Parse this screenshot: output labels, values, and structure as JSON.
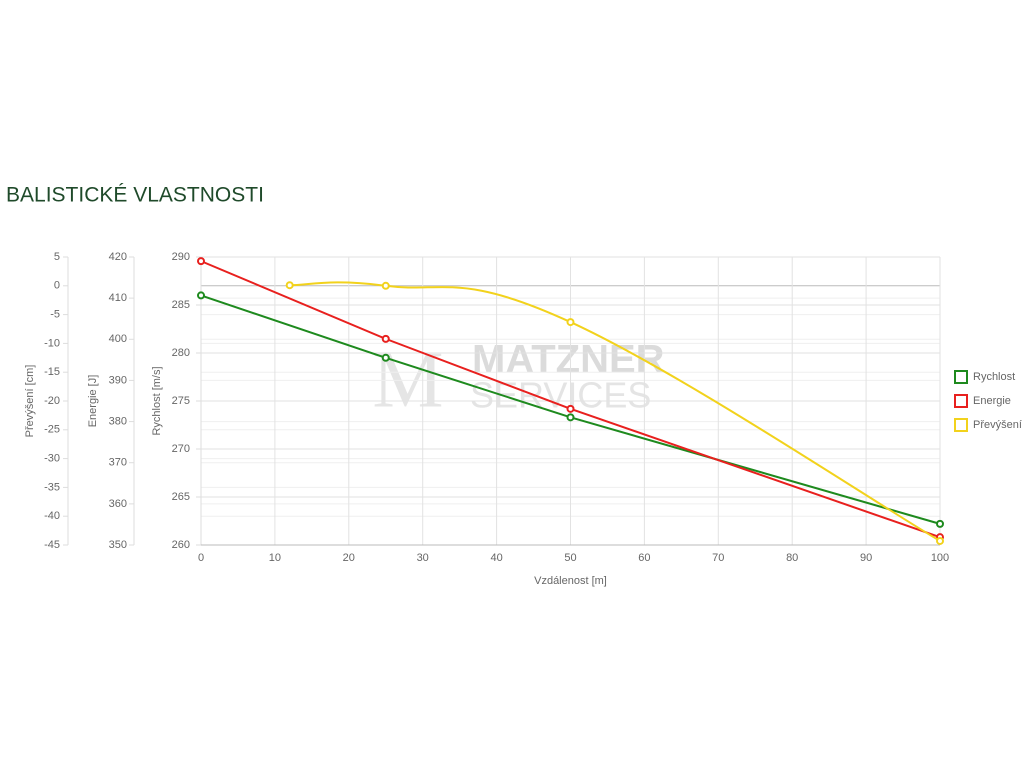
{
  "chart_data": {
    "type": "line",
    "title": "BALISTICKÉ VLASTNOSTI",
    "watermark": [
      "MATZNER",
      "SERVICES"
    ],
    "x_label": "Vzdálenost [m]",
    "xlim": [
      0,
      100
    ],
    "xticks": [
      0,
      10,
      20,
      30,
      40,
      50,
      60,
      70,
      80,
      90,
      100
    ],
    "y_label": "Rychlost [m/s]",
    "ylim": [
      260,
      290
    ],
    "yticks": [
      260,
      265,
      270,
      275,
      280,
      285,
      290
    ],
    "y2_label": "Energie [J]",
    "y2lim": [
      350,
      420
    ],
    "y2ticks": [
      350,
      360,
      370,
      380,
      390,
      400,
      410,
      420
    ],
    "y3_label": "Převýšení [cm]",
    "y3lim": [
      -45,
      5
    ],
    "y3ticks": [
      -45,
      -40,
      -35,
      -30,
      -25,
      -20,
      -15,
      -10,
      -5,
      0,
      5
    ],
    "grid": true,
    "legend": "right",
    "series": [
      {
        "name": "Rychlost",
        "color": "#1e8a1e",
        "axis": "y",
        "smooth": false,
        "x": [
          0,
          25,
          50,
          100
        ],
        "values": [
          286.0,
          279.5,
          273.3,
          262.2
        ]
      },
      {
        "name": "Energie",
        "color": "#e8201e",
        "axis": "y2",
        "smooth": false,
        "x": [
          0,
          25,
          50,
          100
        ],
        "values": [
          419.0,
          400.1,
          383.1,
          351.9
        ]
      },
      {
        "name": "Převýšení",
        "color": "#f2d21c",
        "axis": "y3",
        "smooth": true,
        "x": [
          12,
          25,
          50,
          100
        ],
        "values": [
          0.1,
          0,
          -6.3,
          -44.3
        ]
      }
    ]
  }
}
